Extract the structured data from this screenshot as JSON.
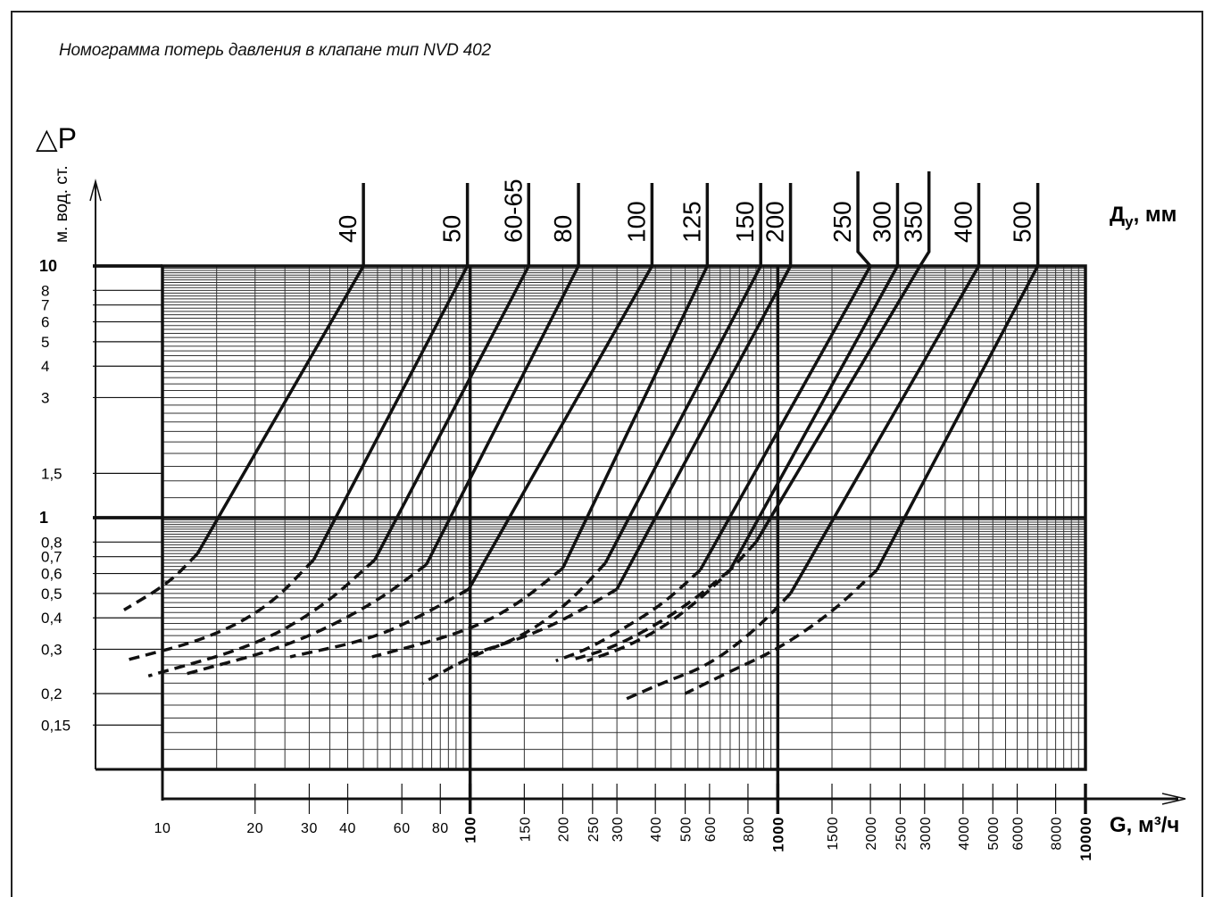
{
  "title": "Номограмма потерь давления в клапане тип NVD 402",
  "y_axis": {
    "symbol": "△P",
    "unit": "м. вод. ст."
  },
  "x_axis": {
    "label": "G, м³/ч"
  },
  "dn_axis": {
    "label_main": "Д",
    "label_sub": "у",
    "label_tail": ", мм"
  },
  "chart_data": {
    "type": "line",
    "title": "Номограмма потерь давления в клапане тип NVD 402",
    "xlabel": "G, м³/ч",
    "ylabel": "△P, м. вод. ст.",
    "x_scale": "log",
    "y_scale": "log",
    "xlim": [
      7.5,
      10000
    ],
    "ylim": [
      0.12,
      10
    ],
    "grid": true,
    "x_ticks": [
      {
        "v": 10,
        "label": "10",
        "major": false
      },
      {
        "v": 20,
        "label": "20",
        "major": false
      },
      {
        "v": 30,
        "label": "30",
        "major": false
      },
      {
        "v": 40,
        "label": "40",
        "major": false
      },
      {
        "v": 60,
        "label": "60",
        "major": false
      },
      {
        "v": 80,
        "label": "80",
        "major": false
      },
      {
        "v": 100,
        "label": "100",
        "major": true
      },
      {
        "v": 150,
        "label": "150",
        "major": false
      },
      {
        "v": 200,
        "label": "200",
        "major": false
      },
      {
        "v": 250,
        "label": "250",
        "major": false
      },
      {
        "v": 300,
        "label": "300",
        "major": false
      },
      {
        "v": 400,
        "label": "400",
        "major": false
      },
      {
        "v": 500,
        "label": "500",
        "major": false
      },
      {
        "v": 600,
        "label": "600",
        "major": false
      },
      {
        "v": 800,
        "label": "800",
        "major": false
      },
      {
        "v": 1000,
        "label": "1000",
        "major": true
      },
      {
        "v": 1500,
        "label": "1500",
        "major": false
      },
      {
        "v": 2000,
        "label": "2000",
        "major": false
      },
      {
        "v": 2500,
        "label": "2500",
        "major": false
      },
      {
        "v": 3000,
        "label": "3000",
        "major": false
      },
      {
        "v": 4000,
        "label": "4000",
        "major": false
      },
      {
        "v": 5000,
        "label": "5000",
        "major": false
      },
      {
        "v": 6000,
        "label": "6000",
        "major": false
      },
      {
        "v": 8000,
        "label": "8000",
        "major": false
      },
      {
        "v": 10000,
        "label": "10000",
        "major": true
      }
    ],
    "y_ticks": [
      {
        "v": 10,
        "label": "10",
        "major": true
      },
      {
        "v": 8,
        "label": "8",
        "major": false
      },
      {
        "v": 7,
        "label": "7",
        "major": false
      },
      {
        "v": 6,
        "label": "6",
        "major": false
      },
      {
        "v": 5,
        "label": "5",
        "major": false
      },
      {
        "v": 4,
        "label": "4",
        "major": false
      },
      {
        "v": 3,
        "label": "3",
        "major": false
      },
      {
        "v": 1.5,
        "label": "1,5",
        "major": false
      },
      {
        "v": 1,
        "label": "1",
        "major": true
      },
      {
        "v": 0.8,
        "label": "0,8",
        "major": false
      },
      {
        "v": 0.7,
        "label": "0,7",
        "major": false
      },
      {
        "v": 0.6,
        "label": "0,6",
        "major": false
      },
      {
        "v": 0.5,
        "label": "0,5",
        "major": false
      },
      {
        "v": 0.4,
        "label": "0,4",
        "major": false
      },
      {
        "v": 0.3,
        "label": "0,3",
        "major": false
      },
      {
        "v": 0.2,
        "label": "0,2",
        "major": false
      },
      {
        "v": 0.15,
        "label": "0,15",
        "major": false
      }
    ],
    "series": [
      {
        "name": "40",
        "top_x": 45,
        "low_x": 13,
        "low_y": 0.72,
        "dash": [
          [
            13,
            0.72
          ],
          [
            10.5,
            0.55
          ],
          [
            7.5,
            0.43
          ]
        ]
      },
      {
        "name": "50",
        "top_x": 98,
        "low_x": 31,
        "low_y": 0.68,
        "dash": [
          [
            31,
            0.68
          ],
          [
            22,
            0.44
          ],
          [
            14,
            0.33
          ],
          [
            7.5,
            0.27
          ]
        ]
      },
      {
        "name": "60-65",
        "top_x": 155,
        "low_x": 49,
        "low_y": 0.68,
        "dash": [
          [
            49,
            0.68
          ],
          [
            33,
            0.44
          ],
          [
            20,
            0.31
          ],
          [
            9,
            0.235
          ]
        ]
      },
      {
        "name": "80",
        "top_x": 225,
        "low_x": 72,
        "low_y": 0.65,
        "dash": [
          [
            72,
            0.65
          ],
          [
            48,
            0.45
          ],
          [
            26,
            0.31
          ],
          [
            12,
            0.24
          ]
        ]
      },
      {
        "name": "100",
        "top_x": 390,
        "low_x": 99,
        "low_y": 0.52,
        "dash": [
          [
            99,
            0.52
          ],
          [
            70,
            0.41
          ],
          [
            48,
            0.33
          ],
          [
            26,
            0.28
          ]
        ]
      },
      {
        "name": "125",
        "top_x": 590,
        "low_x": 200,
        "low_y": 0.63,
        "dash": [
          [
            200,
            0.63
          ],
          [
            145,
            0.46
          ],
          [
            110,
            0.38
          ],
          [
            80,
            0.33
          ],
          [
            48,
            0.28
          ]
        ]
      },
      {
        "name": "150",
        "top_x": 880,
        "low_x": 275,
        "low_y": 0.66,
        "dash": [
          [
            275,
            0.66
          ],
          [
            210,
            0.46
          ],
          [
            150,
            0.34
          ],
          [
            100,
            0.28
          ],
          [
            70,
            0.22
          ]
        ]
      },
      {
        "name": "200",
        "top_x": 1100,
        "low_x": 300,
        "low_y": 0.52,
        "dash": [
          [
            300,
            0.52
          ],
          [
            200,
            0.39
          ],
          [
            145,
            0.33
          ],
          [
            95,
            0.28
          ]
        ]
      },
      {
        "name": "250",
        "top_x": 2000,
        "low_x": 560,
        "low_y": 0.62,
        "dash": [
          [
            560,
            0.62
          ],
          [
            420,
            0.45
          ],
          [
            300,
            0.35
          ],
          [
            240,
            0.3
          ],
          [
            190,
            0.27
          ]
        ]
      },
      {
        "name": "300",
        "top_x": 2450,
        "low_x": 700,
        "low_y": 0.62,
        "dash": [
          [
            700,
            0.62
          ],
          [
            520,
            0.46
          ],
          [
            380,
            0.36
          ],
          [
            280,
            0.3
          ],
          [
            220,
            0.275
          ]
        ]
      },
      {
        "name": "350",
        "top_x": 2900,
        "low_x": 850,
        "low_y": 0.8,
        "dash": [
          [
            850,
            0.8
          ],
          [
            650,
            0.56
          ],
          [
            460,
            0.39
          ],
          [
            330,
            0.31
          ],
          [
            240,
            0.27
          ]
        ]
      },
      {
        "name": "400",
        "top_x": 4500,
        "low_x": 1100,
        "low_y": 0.5,
        "dash": [
          [
            1100,
            0.5
          ],
          [
            850,
            0.36
          ],
          [
            600,
            0.26
          ],
          [
            420,
            0.22
          ],
          [
            320,
            0.19
          ]
        ]
      },
      {
        "name": "500",
        "top_x": 7000,
        "low_x": 2100,
        "low_y": 0.62,
        "dash": [
          [
            2100,
            0.62
          ],
          [
            1500,
            0.42
          ],
          [
            1000,
            0.3
          ],
          [
            700,
            0.245
          ],
          [
            500,
            0.2
          ]
        ]
      }
    ]
  }
}
